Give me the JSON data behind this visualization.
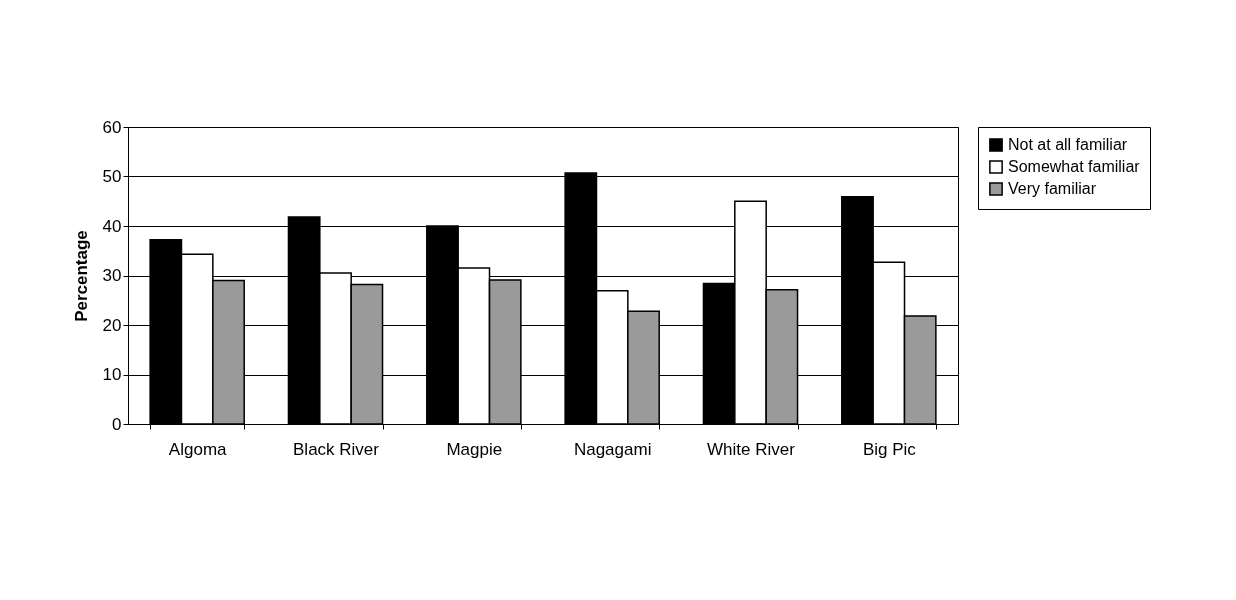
{
  "chart_data": {
    "type": "bar",
    "ylabel": "Percentage",
    "categories": [
      "Algoma",
      "Black River",
      "Magpie",
      "Nagagami",
      "White River",
      "Big Pic"
    ],
    "series": [
      {
        "name": "Not at all familiar",
        "color": "#000000",
        "values": [
          37.2,
          41.8,
          40.0,
          50.7,
          28.4,
          45.9
        ]
      },
      {
        "name": "Somewhat familiar",
        "color": "#ffffff",
        "values": [
          34.3,
          30.5,
          31.5,
          26.9,
          45.0,
          32.7
        ]
      },
      {
        "name": "Very familiar",
        "color": "#9a9a9a",
        "values": [
          29.0,
          28.2,
          29.1,
          22.8,
          27.1,
          21.8
        ]
      }
    ],
    "ylim": [
      0,
      60
    ],
    "yticks": [
      0,
      10,
      20,
      30,
      40,
      50,
      60
    ],
    "grid": "y",
    "legend": "right"
  }
}
